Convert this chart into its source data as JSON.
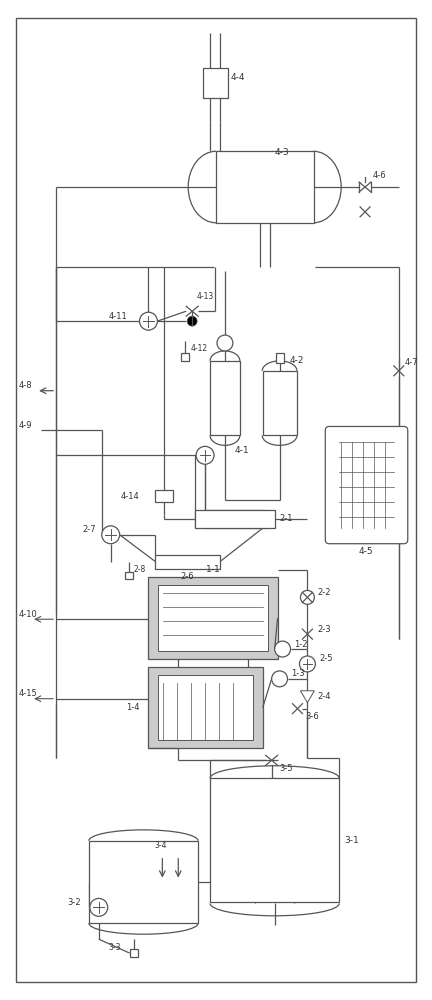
{
  "fig_width": 4.32,
  "fig_height": 10.0,
  "lc": "#555555",
  "lc2": "#333333",
  "gray": "#aaaaaa",
  "lgray": "#cccccc"
}
